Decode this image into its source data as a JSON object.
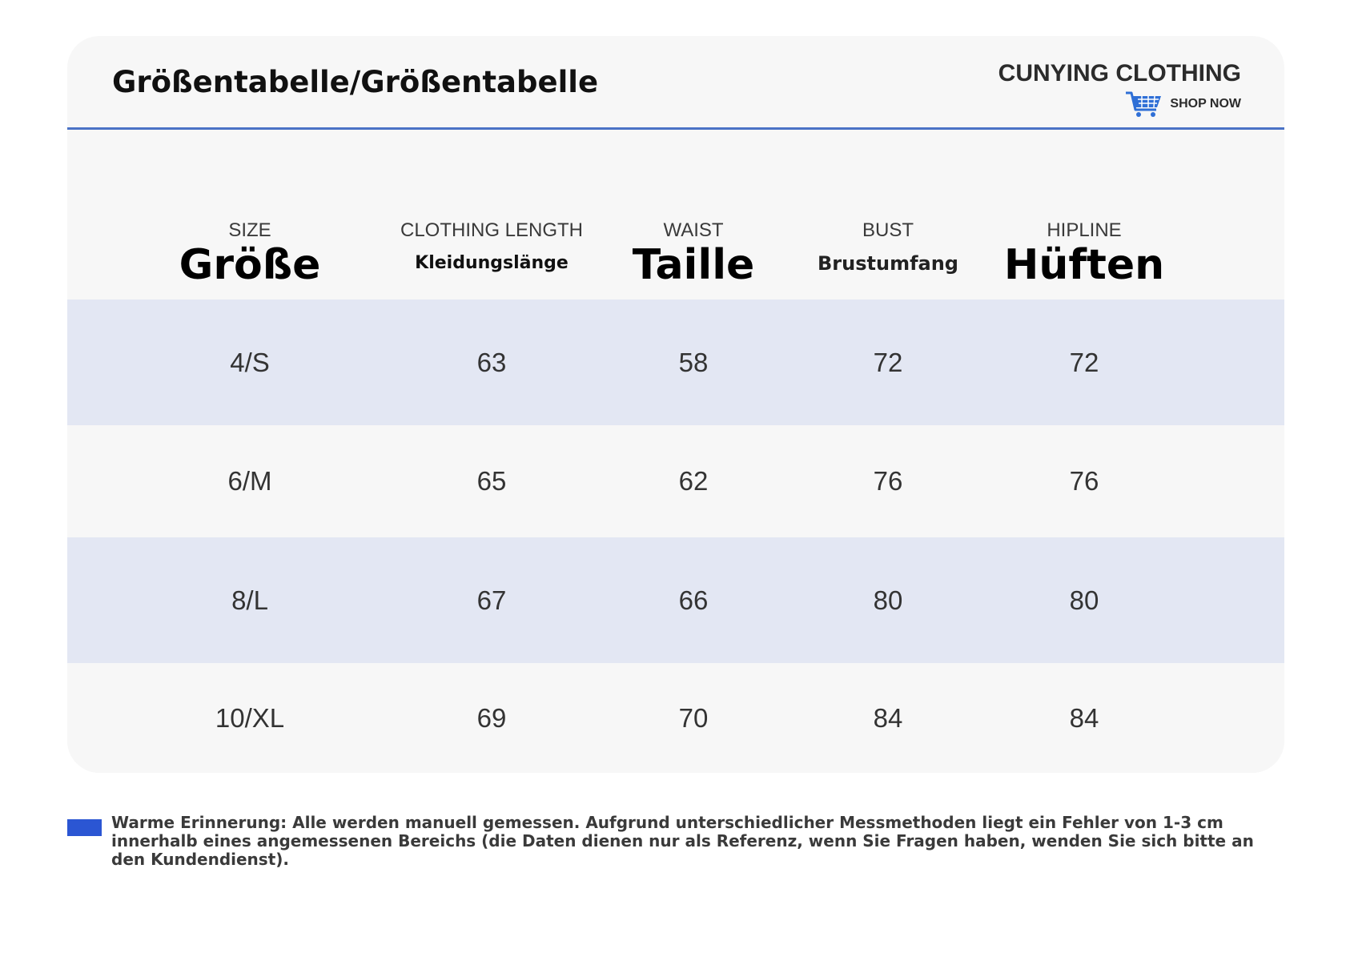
{
  "title": "Größentabelle/Größentabelle",
  "brand": {
    "name": "CUNYING CLOTHING",
    "tagline": "SHOP NOW",
    "icon": "shopping-cart-icon",
    "icon_color": "#2f6fd6"
  },
  "colors": {
    "accent_line": "#4a72c6",
    "row_shaded": "#e3e7f3",
    "row_plain": "#f7f7f7",
    "note_marker": "#2b56d3"
  },
  "table": {
    "columns": [
      {
        "en": "SIZE",
        "de": "Größe"
      },
      {
        "en": "CLOTHING LENGTH",
        "de": "Kleidungslänge"
      },
      {
        "en": "WAIST",
        "de": "Taille"
      },
      {
        "en": "BUST",
        "de": "Brustumfang"
      },
      {
        "en": "HIPLINE",
        "de": "Hüften"
      }
    ],
    "rows": [
      [
        "4/S",
        "63",
        "58",
        "72",
        "72"
      ],
      [
        "6/M",
        "65",
        "62",
        "76",
        "76"
      ],
      [
        "8/L",
        "67",
        "66",
        "80",
        "80"
      ],
      [
        "10/XL",
        "69",
        "70",
        "84",
        "84"
      ]
    ]
  },
  "note": "Warme Erinnerung: Alle werden manuell gemessen. Aufgrund unterschiedlicher Messmethoden liegt ein Fehler von 1-3 cm innerhalb eines angemessenen Bereichs (die Daten dienen nur als Referenz, wenn Sie Fragen haben, wenden Sie sich bitte an den Kundendienst)."
}
